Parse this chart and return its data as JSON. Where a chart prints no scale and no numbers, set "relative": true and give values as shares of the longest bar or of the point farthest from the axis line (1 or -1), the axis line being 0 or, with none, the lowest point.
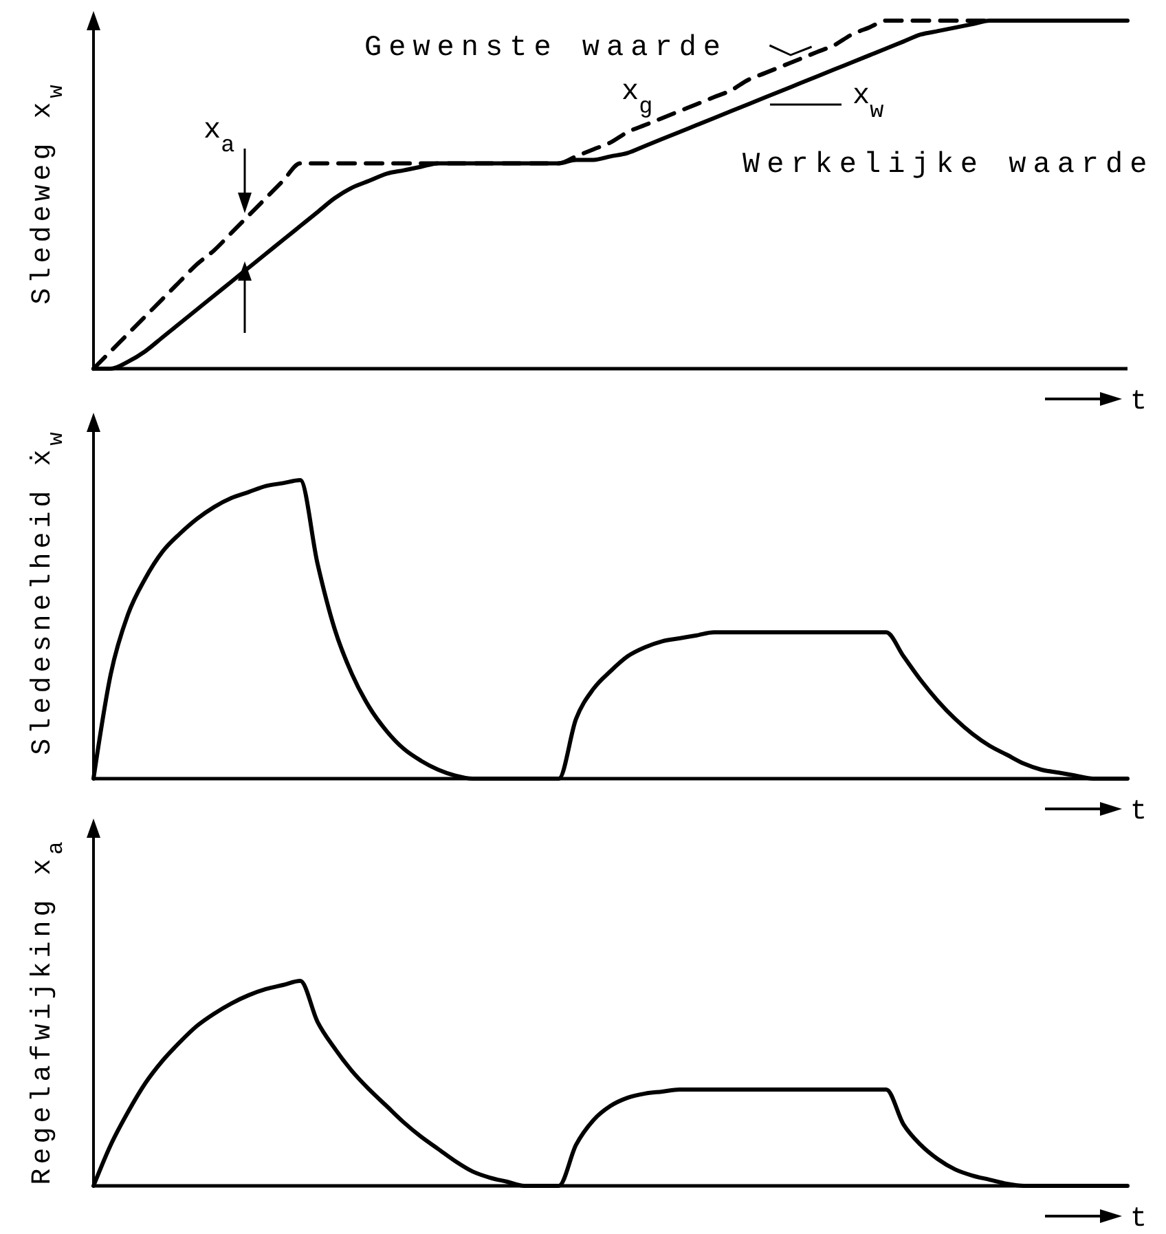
{
  "chart_data": [
    {
      "type": "line",
      "relative": true,
      "ylabel": "Sledeweg x$_{w}$",
      "xlabel": "t",
      "categories": [
        null,
        null,
        null,
        null,
        null,
        null,
        null,
        null,
        null,
        null,
        null,
        null,
        null,
        null,
        null,
        null,
        null,
        null,
        null,
        null,
        null,
        null,
        null,
        null,
        null,
        null,
        null,
        null,
        null,
        null,
        null,
        null,
        null,
        null,
        null,
        null,
        null,
        null,
        null,
        null,
        null,
        null,
        null,
        null,
        null,
        null,
        null,
        null,
        null,
        null,
        null,
        null,
        null,
        null,
        null,
        null,
        null,
        null,
        null,
        null,
        null
      ],
      "series": [
        {
          "name": "Gewenste waarde",
          "color": "#000000",
          "line_style": "dashed",
          "values": [
            0,
            0.05,
            0.1,
            0.15,
            0.2,
            0.25,
            0.3,
            0.34,
            0.39,
            0.44,
            0.49,
            0.54,
            0.59,
            0.59,
            0.59,
            0.59,
            0.59,
            0.59,
            0.59,
            0.59,
            0.59,
            0.59,
            0.59,
            0.59,
            0.59,
            0.59,
            0.59,
            0.59,
            0.61,
            0.63,
            0.65,
            0.68,
            0.7,
            0.72,
            0.74,
            0.76,
            0.78,
            0.8,
            0.83,
            0.85,
            0.87,
            0.89,
            0.91,
            0.93,
            0.96,
            0.98,
            1,
            1,
            1,
            1,
            1,
            1,
            1,
            1,
            1,
            1,
            1,
            1,
            1,
            1,
            1
          ]
        },
        {
          "name": "Werkelijke waarde",
          "color": "#000000",
          "line_style": "solid",
          "values": [
            0,
            0,
            0.02,
            0.05,
            0.09,
            0.13,
            0.17,
            0.21,
            0.25,
            0.29,
            0.33,
            0.37,
            0.41,
            0.45,
            0.49,
            0.52,
            0.54,
            0.56,
            0.57,
            0.58,
            0.59,
            0.59,
            0.59,
            0.59,
            0.59,
            0.59,
            0.59,
            0.59,
            0.6,
            0.6,
            0.61,
            0.62,
            0.64,
            0.66,
            0.68,
            0.7,
            0.72,
            0.74,
            0.76,
            0.78,
            0.8,
            0.82,
            0.84,
            0.86,
            0.88,
            0.9,
            0.92,
            0.94,
            0.96,
            0.97,
            0.98,
            0.99,
            1,
            1,
            1,
            1,
            1,
            1,
            1,
            1,
            1
          ]
        }
      ],
      "annotations": [
        "x$_{a}$",
        "x$_{g}$",
        "x$_{w}$"
      ]
    },
    {
      "type": "line",
      "relative": true,
      "ylabel": "Sledesnelheid ẋ$_{w}$",
      "xlabel": "t",
      "categories": [
        null,
        null,
        null,
        null,
        null,
        null,
        null,
        null,
        null,
        null,
        null,
        null,
        null,
        null,
        null,
        null,
        null,
        null,
        null,
        null,
        null,
        null,
        null,
        null,
        null,
        null,
        null,
        null,
        null,
        null,
        null,
        null,
        null,
        null,
        null,
        null,
        null,
        null,
        null,
        null,
        null,
        null,
        null,
        null,
        null,
        null,
        null,
        null,
        null,
        null,
        null,
        null,
        null,
        null,
        null,
        null,
        null,
        null,
        null,
        null,
        null
      ],
      "series": [
        {
          "color": "#000000",
          "values": [
            0,
            0.35,
            0.55,
            0.67,
            0.76,
            0.82,
            0.87,
            0.91,
            0.94,
            0.96,
            0.98,
            0.99,
            1,
            0.72,
            0.5,
            0.35,
            0.24,
            0.16,
            0.1,
            0.06,
            0.03,
            0.01,
            0,
            0,
            0,
            0,
            0,
            0,
            0.2,
            0.3,
            0.36,
            0.41,
            0.44,
            0.46,
            0.47,
            0.48,
            0.49,
            0.49,
            0.49,
            0.49,
            0.49,
            0.49,
            0.49,
            0.49,
            0.49,
            0.49,
            0.49,
            0.41,
            0.33,
            0.26,
            0.2,
            0.15,
            0.11,
            0.08,
            0.05,
            0.03,
            0.02,
            0.01,
            0,
            0,
            0
          ]
        }
      ]
    },
    {
      "type": "line",
      "relative": true,
      "ylabel": "Regelafwijking x$_{a}$",
      "xlabel": "t",
      "categories": [
        null,
        null,
        null,
        null,
        null,
        null,
        null,
        null,
        null,
        null,
        null,
        null,
        null,
        null,
        null,
        null,
        null,
        null,
        null,
        null,
        null,
        null,
        null,
        null,
        null,
        null,
        null,
        null,
        null,
        null,
        null,
        null,
        null,
        null,
        null,
        null,
        null,
        null,
        null,
        null,
        null,
        null,
        null,
        null,
        null,
        null,
        null,
        null,
        null,
        null,
        null,
        null,
        null,
        null,
        null,
        null,
        null,
        null,
        null,
        null,
        null
      ],
      "series": [
        {
          "color": "#000000",
          "values": [
            0,
            0.2,
            0.36,
            0.5,
            0.61,
            0.7,
            0.78,
            0.84,
            0.89,
            0.93,
            0.96,
            0.98,
            1,
            0.8,
            0.67,
            0.56,
            0.47,
            0.39,
            0.31,
            0.24,
            0.18,
            0.12,
            0.07,
            0.04,
            0.02,
            0,
            0,
            0,
            0.2,
            0.32,
            0.39,
            0.43,
            0.45,
            0.46,
            0.47,
            0.47,
            0.47,
            0.47,
            0.47,
            0.47,
            0.47,
            0.47,
            0.47,
            0.47,
            0.47,
            0.47,
            0.47,
            0.3,
            0.2,
            0.13,
            0.08,
            0.05,
            0.03,
            0.01,
            0,
            0,
            0,
            0,
            0,
            0,
            0
          ]
        }
      ]
    }
  ]
}
